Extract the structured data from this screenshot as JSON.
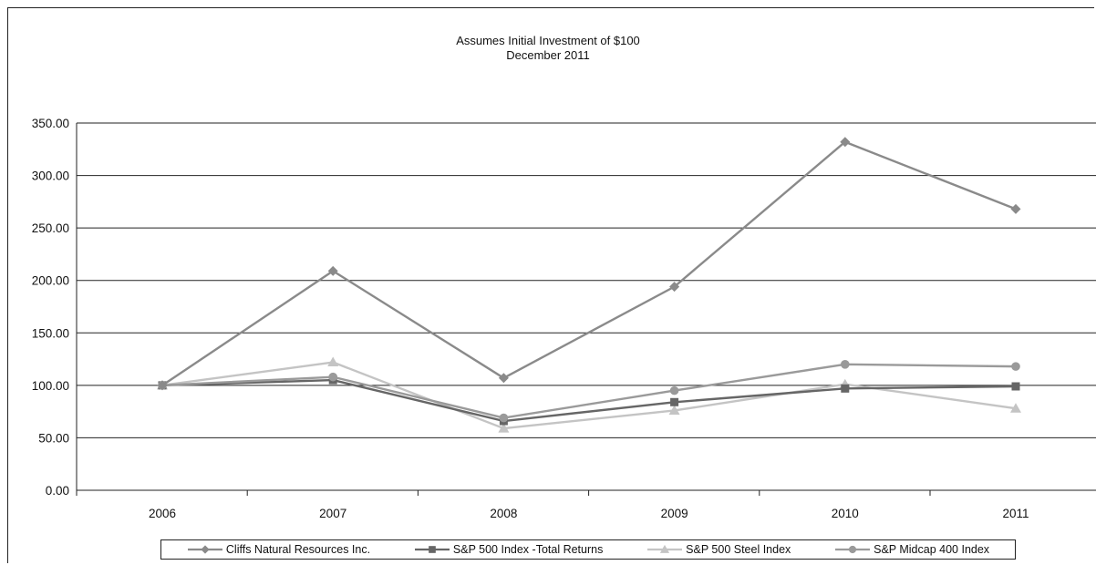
{
  "chart_data": {
    "type": "line",
    "title": "Assumes Initial Investment of $100",
    "subtitle": "December 2011",
    "categories": [
      "2006",
      "2007",
      "2008",
      "2009",
      "2010",
      "2011"
    ],
    "ylim": [
      0,
      350
    ],
    "yticks": [
      "0.00",
      "50.00",
      "100.00",
      "150.00",
      "200.00",
      "250.00",
      "300.00",
      "350.00"
    ],
    "grid": true,
    "legend_position": "bottom",
    "series": [
      {
        "name": "Cliffs Natural Resources Inc.",
        "marker": "diamond",
        "color": "#8a8a8a",
        "values": [
          100,
          209,
          107,
          194,
          332,
          268
        ]
      },
      {
        "name": "S&P 500 Index -Total Returns",
        "marker": "square",
        "color": "#666666",
        "values": [
          100,
          105,
          66,
          84,
          97,
          99
        ]
      },
      {
        "name": "S&P 500 Steel Index",
        "marker": "triangle",
        "color": "#c4c4c4",
        "values": [
          100,
          122,
          59,
          76,
          101,
          78
        ]
      },
      {
        "name": "S&P Midcap 400 Index",
        "marker": "circle",
        "color": "#9a9a9a",
        "values": [
          100,
          108,
          69,
          95,
          120,
          118
        ]
      }
    ]
  }
}
